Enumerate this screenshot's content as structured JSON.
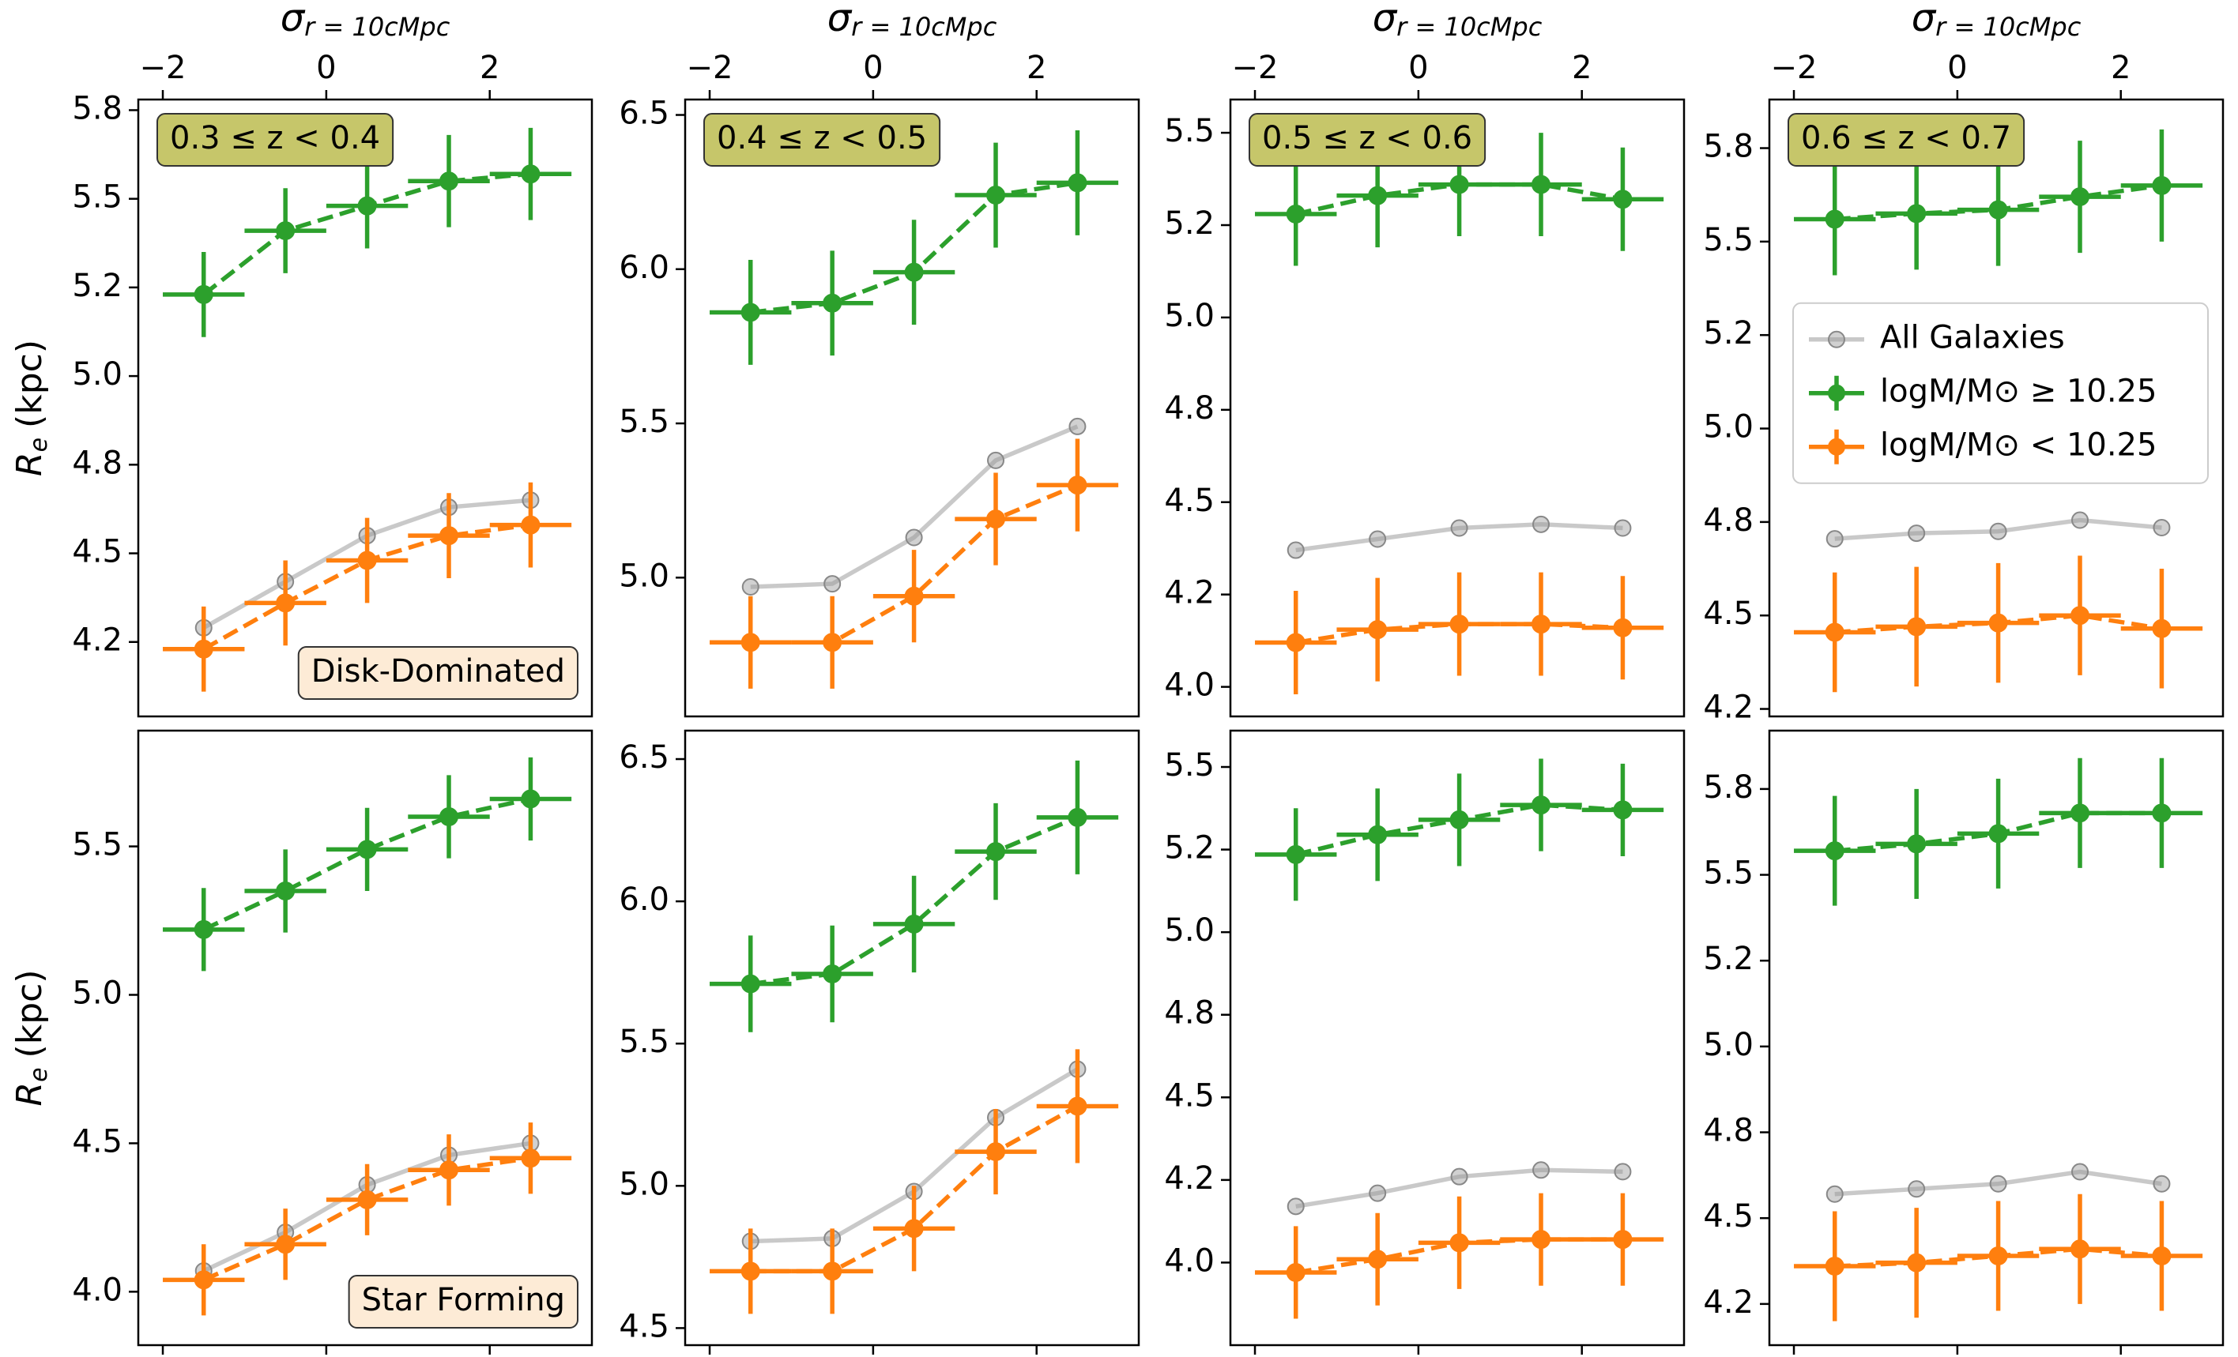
{
  "chart_data": [
    {
      "type": "line",
      "xlabel": "σ",
      "xlabel_subscript": "r = 10cMpc",
      "ylabel": "R",
      "ylabel_subscript": "e",
      "ylabel_unit": "(kpc)",
      "annotation": "0.3 ≤ z < 0.4",
      "row_label": "Disk-Dominated",
      "xaxis_position": "top",
      "x": [
        -1.5,
        -0.5,
        0.5,
        1.5,
        2.5
      ],
      "xlim": [
        -2.3,
        3.25
      ],
      "xticks": [
        {
          "value": -2,
          "label": "−2"
        },
        0,
        2
      ],
      "ylim": [
        4.04,
        5.78
      ],
      "yticks": [
        {
          "value": 4.25,
          "label": "4.2"
        },
        {
          "value": 4.5,
          "label": "4.5"
        },
        {
          "value": 4.75,
          "label": "4.8"
        },
        {
          "value": 5,
          "label": "5.0"
        },
        {
          "value": 5.25,
          "label": "5.2"
        },
        {
          "value": 5.5,
          "label": "5.5"
        },
        {
          "value": 5.75,
          "label": "5.8"
        }
      ],
      "series": [
        {
          "name": "All Galaxies",
          "color": "#bbbbbb",
          "values": [
            4.29,
            4.42,
            4.55,
            4.63,
            4.65
          ]
        },
        {
          "name": "logM/M⊙ ≥ 10.25",
          "color": "#2ca02c",
          "linestyle": "dashed",
          "values": [
            5.23,
            5.41,
            5.48,
            5.55,
            5.57
          ],
          "errors": [
            0.12,
            0.12,
            0.12,
            0.13,
            0.13
          ],
          "x_errors": [
            0.5,
            0.5,
            0.5,
            0.5,
            0.5
          ]
        },
        {
          "name": "logM/M⊙ < 10.25",
          "color": "#ff7f0e",
          "linestyle": "dashed",
          "values": [
            4.23,
            4.36,
            4.48,
            4.55,
            4.58
          ],
          "errors": [
            0.12,
            0.12,
            0.12,
            0.12,
            0.12
          ],
          "x_errors": [
            0.5,
            0.5,
            0.5,
            0.5,
            0.5
          ]
        }
      ]
    },
    {
      "type": "line",
      "xlabel": "σ",
      "xlabel_subscript": "r = 10cMpc",
      "annotation": "0.4 ≤ z < 0.5",
      "xaxis_position": "top",
      "x": [
        -1.5,
        -0.5,
        0.5,
        1.5,
        2.5
      ],
      "xlim": [
        -2.3,
        3.25
      ],
      "xticks": [
        {
          "value": -2,
          "label": "−2"
        },
        0,
        2
      ],
      "ylim": [
        4.55,
        6.55
      ],
      "yticks": [
        {
          "value": 5,
          "label": "5.0"
        },
        {
          "value": 5.5,
          "label": "5.5"
        },
        {
          "value": 6,
          "label": "6.0"
        },
        {
          "value": 6.5,
          "label": "6.5"
        }
      ],
      "series": [
        {
          "name": "All Galaxies",
          "color": "#bbbbbb",
          "values": [
            4.97,
            4.98,
            5.13,
            5.38,
            5.49
          ]
        },
        {
          "name": "logM/M⊙ ≥ 10.25",
          "color": "#2ca02c",
          "linestyle": "dashed",
          "values": [
            5.86,
            5.89,
            5.99,
            6.24,
            6.28
          ],
          "errors": [
            0.17,
            0.17,
            0.17,
            0.17,
            0.17
          ],
          "x_errors": [
            0.5,
            0.5,
            0.5,
            0.5,
            0.5
          ]
        },
        {
          "name": "logM/M⊙ < 10.25",
          "color": "#ff7f0e",
          "linestyle": "dashed",
          "values": [
            4.79,
            4.79,
            4.94,
            5.19,
            5.3
          ],
          "errors": [
            0.15,
            0.15,
            0.15,
            0.15,
            0.15
          ],
          "x_errors": [
            0.5,
            0.5,
            0.5,
            0.5,
            0.5
          ]
        }
      ]
    },
    {
      "type": "line",
      "xlabel": "σ",
      "xlabel_subscript": "r = 10cMpc",
      "annotation": "0.5 ≤ z < 0.6",
      "xaxis_position": "top",
      "x": [
        -1.5,
        -0.5,
        0.5,
        1.5,
        2.5
      ],
      "xlim": [
        -2.3,
        3.25
      ],
      "xticks": [
        {
          "value": -2,
          "label": "−2"
        },
        0,
        2
      ],
      "ylim": [
        3.92,
        5.59
      ],
      "yticks": [
        {
          "value": 4,
          "label": "4.0"
        },
        {
          "value": 4.25,
          "label": "4.2"
        },
        {
          "value": 4.5,
          "label": "4.5"
        },
        {
          "value": 4.75,
          "label": "4.8"
        },
        {
          "value": 5,
          "label": "5.0"
        },
        {
          "value": 5.25,
          "label": "5.2"
        },
        {
          "value": 5.5,
          "label": "5.5"
        }
      ],
      "series": [
        {
          "name": "All Galaxies",
          "color": "#bbbbbb",
          "values": [
            4.37,
            4.4,
            4.43,
            4.44,
            4.43
          ]
        },
        {
          "name": "logM/M⊙ ≥ 10.25",
          "color": "#2ca02c",
          "linestyle": "dashed",
          "values": [
            5.28,
            5.33,
            5.36,
            5.36,
            5.32
          ],
          "errors": [
            0.14,
            0.14,
            0.14,
            0.14,
            0.14
          ],
          "x_errors": [
            0.5,
            0.5,
            0.5,
            0.5,
            0.5
          ]
        },
        {
          "name": "logM/M⊙ < 10.25",
          "color": "#ff7f0e",
          "linestyle": "dashed",
          "values": [
            4.12,
            4.155,
            4.17,
            4.17,
            4.16
          ],
          "errors": [
            0.14,
            0.14,
            0.14,
            0.14,
            0.14
          ],
          "x_errors": [
            0.5,
            0.5,
            0.5,
            0.5,
            0.5
          ]
        }
      ]
    },
    {
      "type": "line",
      "xlabel": "σ",
      "xlabel_subscript": "r = 10cMpc",
      "annotation": "0.6 ≤ z < 0.7",
      "xaxis_position": "top",
      "legend": "center left",
      "x": [
        -1.5,
        -0.5,
        0.5,
        1.5,
        2.5
      ],
      "xlim": [
        -2.3,
        3.25
      ],
      "xticks": [
        {
          "value": -2,
          "label": "−2"
        },
        0,
        2
      ],
      "ylim": [
        4.23,
        5.88
      ],
      "yticks": [
        {
          "value": 4.25,
          "label": "4.2"
        },
        {
          "value": 4.5,
          "label": "4.5"
        },
        {
          "value": 4.75,
          "label": "4.8"
        },
        {
          "value": 5,
          "label": "5.0"
        },
        {
          "value": 5.25,
          "label": "5.2"
        },
        {
          "value": 5.5,
          "label": "5.5"
        },
        {
          "value": 5.75,
          "label": "5.8"
        }
      ],
      "series": [
        {
          "name": "All Galaxies",
          "color": "#bbbbbb",
          "values": [
            4.705,
            4.72,
            4.725,
            4.755,
            4.735
          ]
        },
        {
          "name": "logM/M⊙ ≥ 10.25",
          "color": "#2ca02c",
          "linestyle": "dashed",
          "values": [
            5.56,
            5.575,
            5.585,
            5.62,
            5.65
          ],
          "errors": [
            0.15,
            0.15,
            0.15,
            0.15,
            0.15
          ],
          "x_errors": [
            0.5,
            0.5,
            0.5,
            0.5,
            0.5
          ]
        },
        {
          "name": "logM/M⊙ < 10.25",
          "color": "#ff7f0e",
          "linestyle": "dashed",
          "values": [
            4.455,
            4.47,
            4.48,
            4.5,
            4.465
          ],
          "errors": [
            0.16,
            0.16,
            0.16,
            0.16,
            0.16
          ],
          "x_errors": [
            0.5,
            0.5,
            0.5,
            0.5,
            0.5
          ]
        }
      ]
    },
    {
      "type": "line",
      "ylabel": "R",
      "ylabel_subscript": "e",
      "ylabel_unit": "(kpc)",
      "row_label": "Star Forming",
      "xaxis_position": "bottom",
      "xtick_labels": false,
      "x": [
        -1.5,
        -0.5,
        0.5,
        1.5,
        2.5
      ],
      "xlim": [
        -2.3,
        3.25
      ],
      "xticks": [
        -2,
        0,
        2
      ],
      "ylim": [
        3.82,
        5.89
      ],
      "yticks": [
        {
          "value": 4,
          "label": "4.0"
        },
        {
          "value": 4.5,
          "label": "4.5"
        },
        {
          "value": 5,
          "label": "5.0"
        },
        {
          "value": 5.5,
          "label": "5.5"
        }
      ],
      "series": [
        {
          "name": "All Galaxies",
          "color": "#bbbbbb",
          "values": [
            4.07,
            4.2,
            4.36,
            4.46,
            4.5
          ]
        },
        {
          "name": "logM/M⊙ ≥ 10.25",
          "color": "#2ca02c",
          "linestyle": "dashed",
          "values": [
            5.22,
            5.35,
            5.49,
            5.6,
            5.66
          ],
          "errors": [
            0.14,
            0.14,
            0.14,
            0.14,
            0.14
          ],
          "x_errors": [
            0.5,
            0.5,
            0.5,
            0.5,
            0.5
          ]
        },
        {
          "name": "logM/M⊙ < 10.25",
          "color": "#ff7f0e",
          "linestyle": "dashed",
          "values": [
            4.04,
            4.16,
            4.31,
            4.41,
            4.45
          ],
          "errors": [
            0.12,
            0.12,
            0.12,
            0.12,
            0.12
          ],
          "x_errors": [
            0.5,
            0.5,
            0.5,
            0.5,
            0.5
          ]
        }
      ]
    },
    {
      "type": "line",
      "xaxis_position": "bottom",
      "xtick_labels": false,
      "x": [
        -1.5,
        -0.5,
        0.5,
        1.5,
        2.5
      ],
      "xlim": [
        -2.3,
        3.25
      ],
      "xticks": [
        -2,
        0,
        2
      ],
      "ylim": [
        4.44,
        6.6
      ],
      "yticks": [
        {
          "value": 4.5,
          "label": "4.5"
        },
        {
          "value": 5,
          "label": "5.0"
        },
        {
          "value": 5.5,
          "label": "5.5"
        },
        {
          "value": 6,
          "label": "6.0"
        },
        {
          "value": 6.5,
          "label": "6.5"
        }
      ],
      "series": [
        {
          "name": "All Galaxies",
          "color": "#bbbbbb",
          "values": [
            4.805,
            4.815,
            4.98,
            5.24,
            5.41
          ]
        },
        {
          "name": "logM/M⊙ ≥ 10.25",
          "color": "#2ca02c",
          "linestyle": "dashed",
          "values": [
            5.71,
            5.745,
            5.92,
            6.175,
            6.295
          ],
          "errors": [
            0.17,
            0.17,
            0.17,
            0.17,
            0.2
          ],
          "x_errors": [
            0.5,
            0.5,
            0.5,
            0.5,
            0.5
          ]
        },
        {
          "name": "logM/M⊙ < 10.25",
          "color": "#ff7f0e",
          "linestyle": "dashed",
          "values": [
            4.7,
            4.7,
            4.85,
            5.12,
            5.28
          ],
          "errors": [
            0.15,
            0.15,
            0.15,
            0.15,
            0.2
          ],
          "x_errors": [
            0.5,
            0.5,
            0.5,
            0.5,
            0.5
          ]
        }
      ]
    },
    {
      "type": "line",
      "xaxis_position": "bottom",
      "xtick_labels": false,
      "x": [
        -1.5,
        -0.5,
        0.5,
        1.5,
        2.5
      ],
      "xlim": [
        -2.3,
        3.25
      ],
      "xticks": [
        -2,
        0,
        2
      ],
      "ylim": [
        3.75,
        5.61
      ],
      "yticks": [
        {
          "value": 4,
          "label": "4.0"
        },
        {
          "value": 4.25,
          "label": "4.2"
        },
        {
          "value": 4.5,
          "label": "4.5"
        },
        {
          "value": 4.75,
          "label": "4.8"
        },
        {
          "value": 5,
          "label": "5.0"
        },
        {
          "value": 5.25,
          "label": "5.2"
        },
        {
          "value": 5.5,
          "label": "5.5"
        }
      ],
      "series": [
        {
          "name": "All Galaxies",
          "color": "#bbbbbb",
          "values": [
            4.17,
            4.21,
            4.26,
            4.28,
            4.275
          ]
        },
        {
          "name": "logM/M⊙ ≥ 10.25",
          "color": "#2ca02c",
          "linestyle": "dashed",
          "values": [
            5.235,
            5.295,
            5.34,
            5.385,
            5.37
          ],
          "errors": [
            0.14,
            0.14,
            0.14,
            0.14,
            0.14
          ],
          "x_errors": [
            0.5,
            0.5,
            0.5,
            0.5,
            0.5
          ]
        },
        {
          "name": "logM/M⊙ < 10.25",
          "color": "#ff7f0e",
          "linestyle": "dashed",
          "values": [
            3.97,
            4.01,
            4.06,
            4.07,
            4.07
          ],
          "errors": [
            0.14,
            0.14,
            0.14,
            0.14,
            0.14
          ],
          "x_errors": [
            0.5,
            0.5,
            0.5,
            0.5,
            0.5
          ]
        }
      ]
    },
    {
      "type": "line",
      "xaxis_position": "bottom",
      "xtick_labels": false,
      "x": [
        -1.5,
        -0.5,
        0.5,
        1.5,
        2.5
      ],
      "xlim": [
        -2.3,
        3.25
      ],
      "xticks": [
        -2,
        0,
        2
      ],
      "ylim": [
        4.13,
        5.92
      ],
      "yticks": [
        {
          "value": 4.25,
          "label": "4.2"
        },
        {
          "value": 4.5,
          "label": "4.5"
        },
        {
          "value": 4.75,
          "label": "4.8"
        },
        {
          "value": 5,
          "label": "5.0"
        },
        {
          "value": 5.25,
          "label": "5.2"
        },
        {
          "value": 5.5,
          "label": "5.5"
        },
        {
          "value": 5.75,
          "label": "5.8"
        }
      ],
      "series": [
        {
          "name": "All Galaxies",
          "color": "#bbbbbb",
          "values": [
            4.57,
            4.585,
            4.6,
            4.635,
            4.6
          ]
        },
        {
          "name": "logM/M⊙ ≥ 10.25",
          "color": "#2ca02c",
          "linestyle": "dashed",
          "values": [
            5.57,
            5.59,
            5.62,
            5.68,
            5.68
          ],
          "errors": [
            0.16,
            0.16,
            0.16,
            0.16,
            0.16
          ],
          "x_errors": [
            0.5,
            0.5,
            0.5,
            0.5,
            0.5
          ]
        },
        {
          "name": "logM/M⊙ < 10.25",
          "color": "#ff7f0e",
          "linestyle": "dashed",
          "values": [
            4.36,
            4.37,
            4.39,
            4.41,
            4.39
          ],
          "errors": [
            0.16,
            0.16,
            0.16,
            0.16,
            0.16
          ],
          "x_errors": [
            0.5,
            0.5,
            0.5,
            0.5,
            0.5
          ]
        }
      ]
    }
  ]
}
